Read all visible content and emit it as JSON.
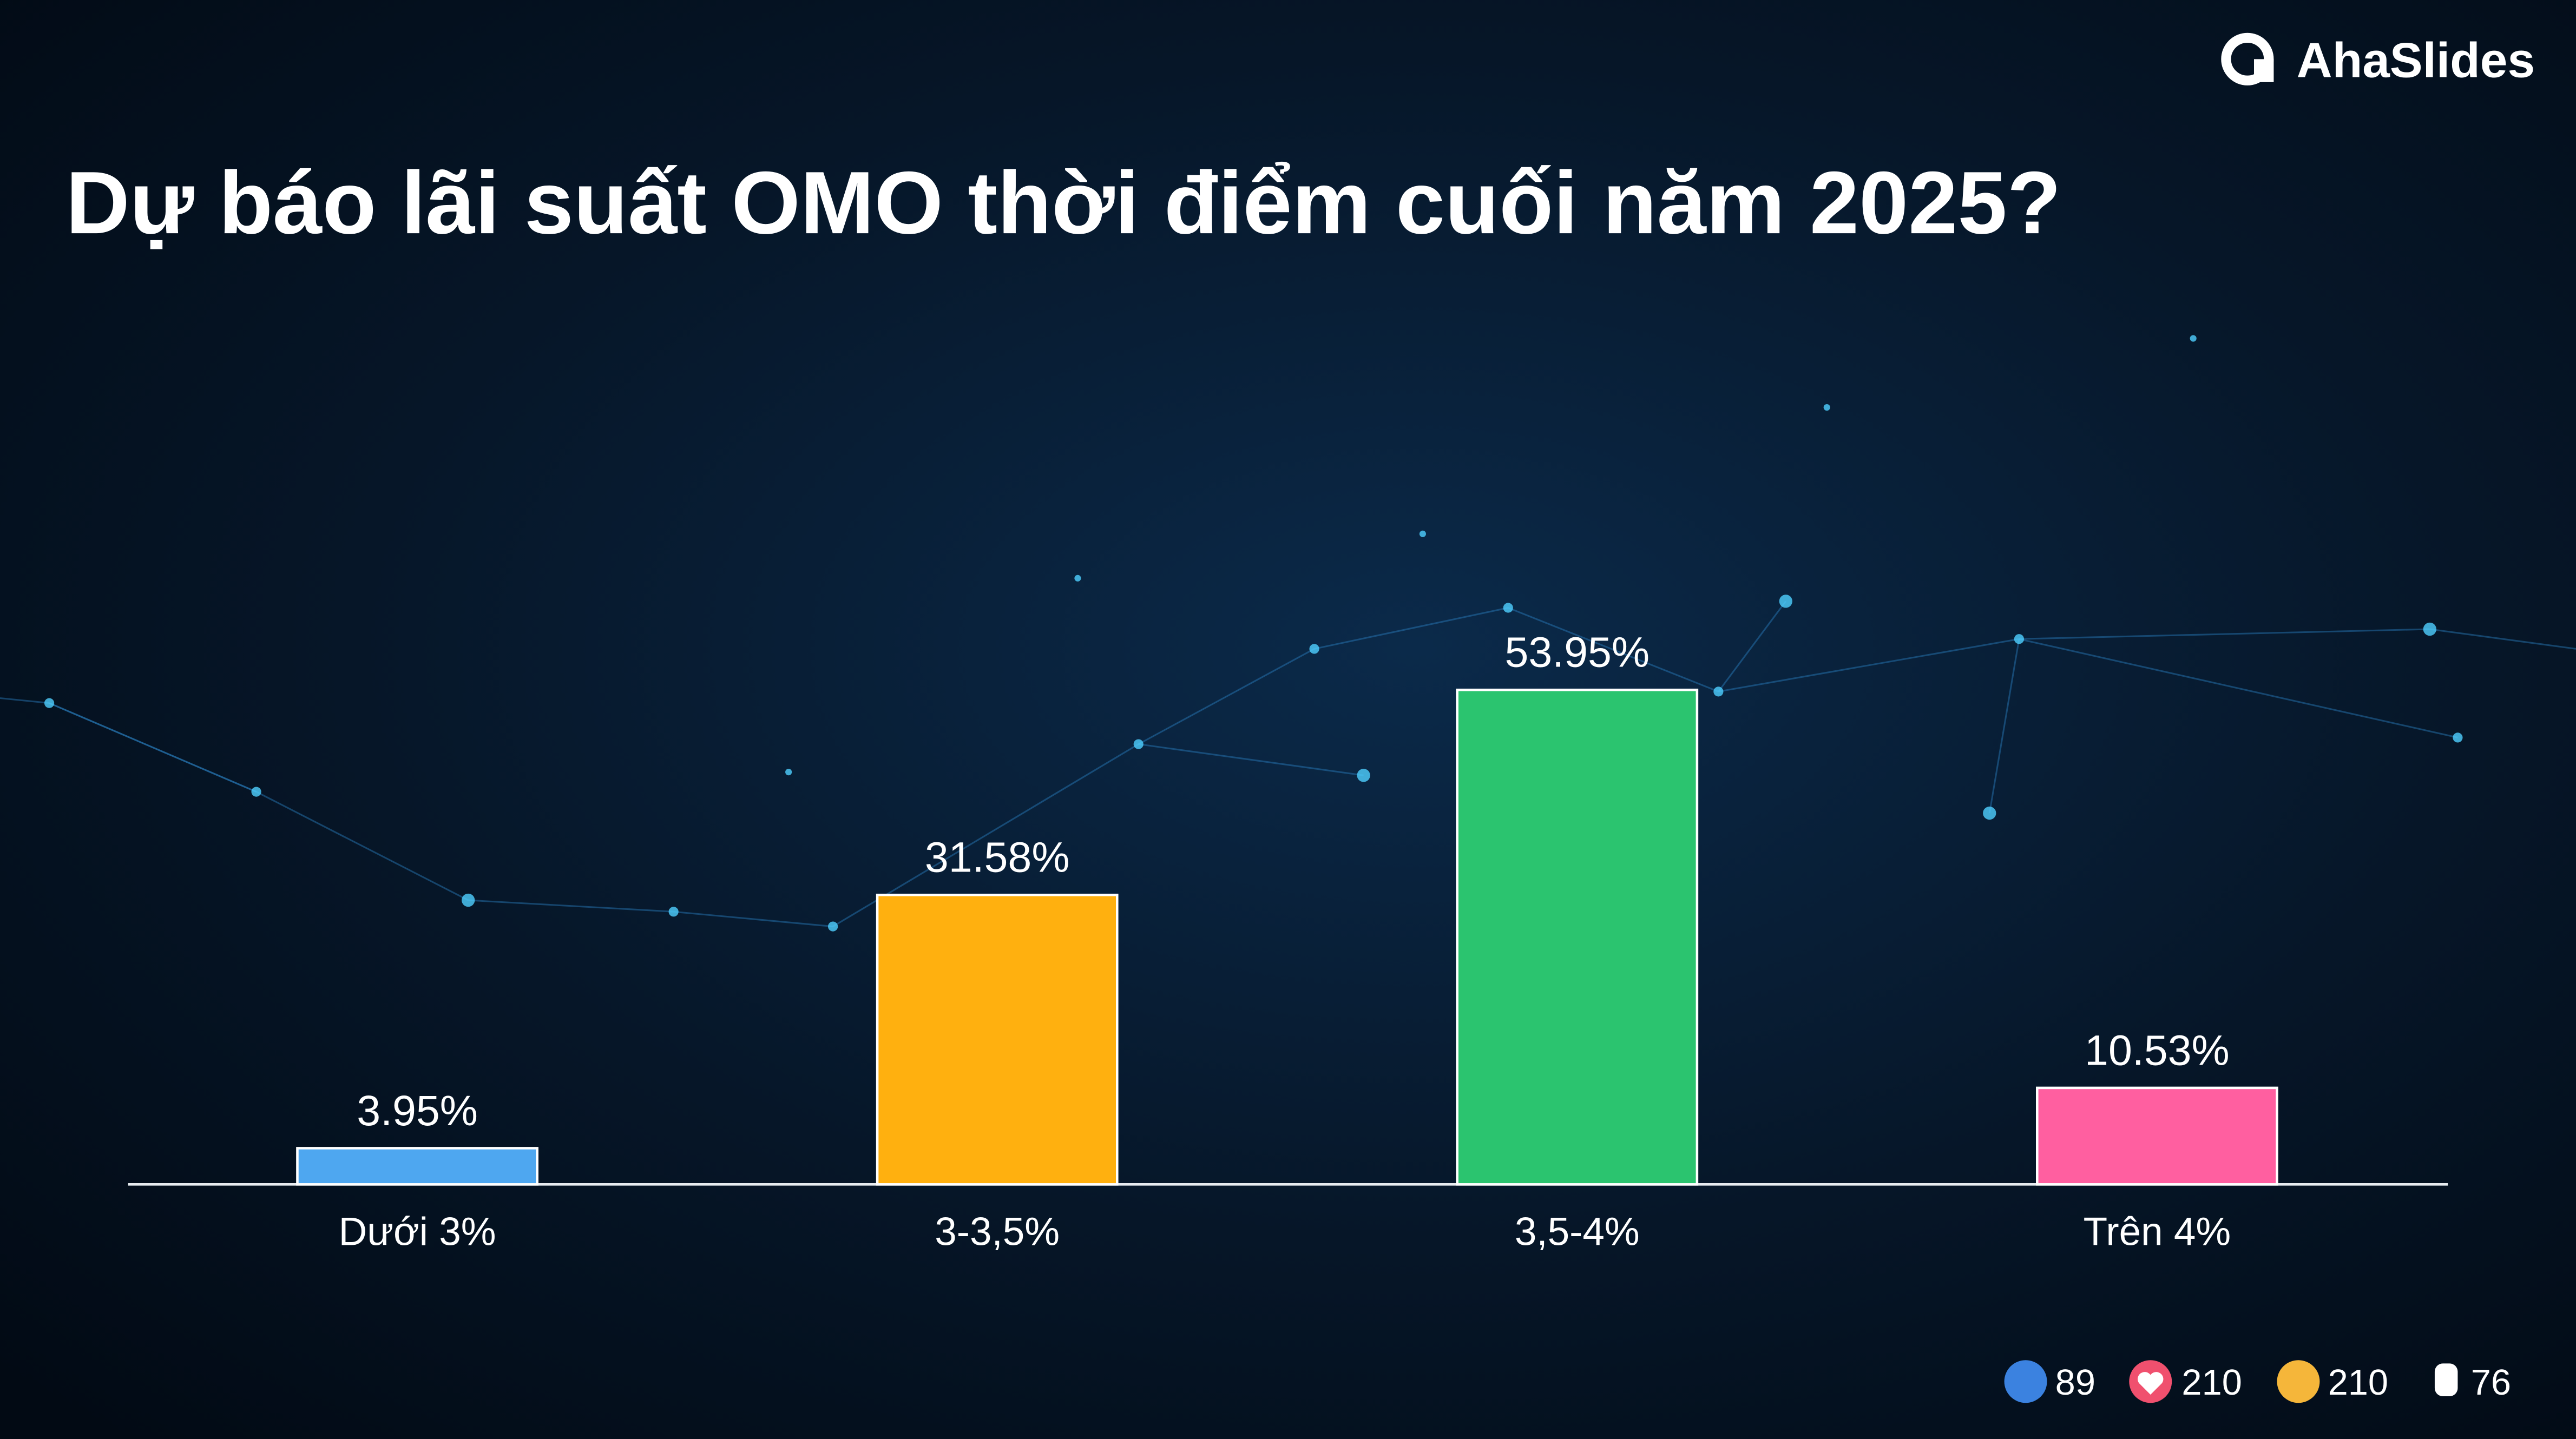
{
  "brand": "AhaSlides",
  "chart_data": {
    "type": "bar",
    "title": "Dự báo lãi suất OMO thời điểm cuối năm 2025?",
    "categories": [
      "Dưới 3%",
      "3-3,5%",
      "3,5-4%",
      "Trên 4%"
    ],
    "values": [
      3.95,
      31.58,
      53.95,
      10.53
    ],
    "value_labels": [
      "3.95%",
      "31.58%",
      "53.95%",
      "10.53%"
    ],
    "colors": [
      "#4ea7f0",
      "#ffb00f",
      "#2bc46f",
      "#ff5fa0"
    ]
  },
  "reactions": [
    89,
    210,
    210,
    76
  ]
}
